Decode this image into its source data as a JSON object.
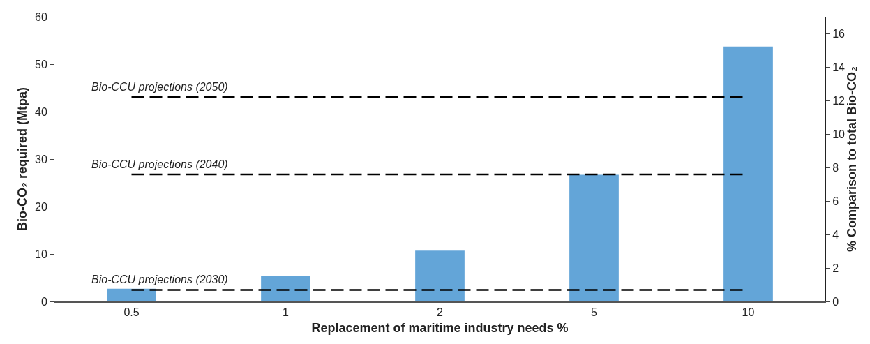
{
  "chart_data": {
    "type": "bar",
    "xlabel": "Replacement of maritime industry needs %",
    "ylabel": "Bio-CO₂ required (Mtpa)",
    "y2label": "% Comparison to total Bio-CO₂",
    "categories": [
      "0.5",
      "1",
      "2",
      "5",
      "10"
    ],
    "values": [
      2.7,
      5.4,
      10.7,
      26.7,
      53.7
    ],
    "color": "#63a5d8",
    "ylim": [
      0,
      60
    ],
    "yticks": [
      0,
      10,
      20,
      30,
      40,
      50,
      60
    ],
    "y2lim": [
      0,
      17
    ],
    "y2ticks": [
      0,
      2,
      4,
      6,
      8,
      10,
      12,
      14,
      16
    ],
    "ref_lines": [
      {
        "axis": "y2",
        "value": 0.69,
        "label": "Bio-CCU projections (2030)",
        "color": "#000000",
        "line_style": "dashed"
      },
      {
        "axis": "y2",
        "value": 7.58,
        "label": "Bio-CCU projections (2040)",
        "color": "#000000",
        "line_style": "dashed"
      },
      {
        "axis": "y2",
        "value": 12.2,
        "label": "Bio-CCU projections (2050)",
        "color": "#000000",
        "line_style": "dashed"
      }
    ]
  }
}
